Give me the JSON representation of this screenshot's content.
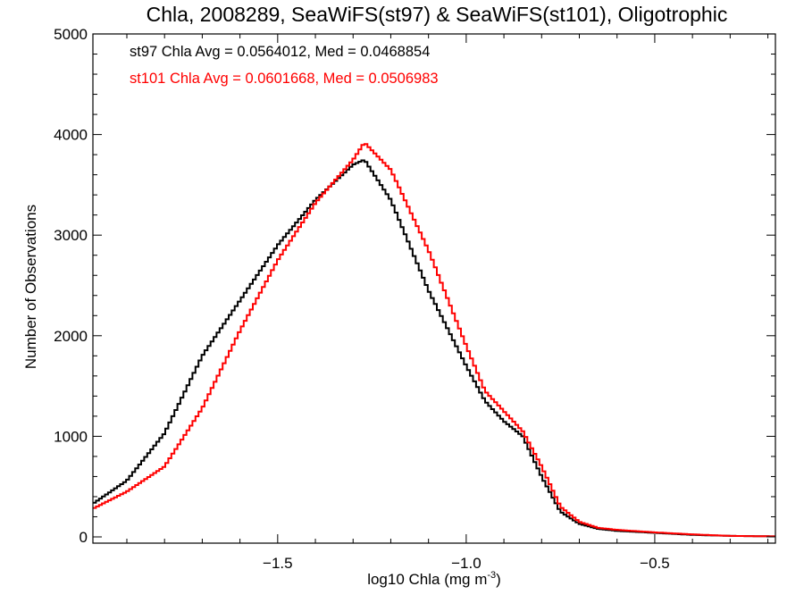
{
  "chart_data": {
    "type": "line",
    "title": "Chla, 2008289, SeaWiFS(st97) & SeaWiFS(st101), Oligotrophic",
    "xlabel": "log10 Chla (mg m",
    "xlabel_sup": "-3",
    "xlabel_close": ")",
    "ylabel": "Number of Observations",
    "xlim": [
      -1.99,
      -0.18
    ],
    "ylim": [
      0,
      5000
    ],
    "x_ticks": [
      -1.5,
      -1.0,
      -0.5
    ],
    "x_tick_labels": [
      "−1.5",
      "−1.0",
      "−0.5"
    ],
    "y_ticks": [
      0,
      1000,
      2000,
      3000,
      4000,
      5000
    ],
    "y_tick_labels": [
      "0",
      "1000",
      "2000",
      "3000",
      "4000",
      "5000"
    ],
    "grid": false,
    "annotations": [
      {
        "text": "st97 Chla Avg = 0.0564012, Med = 0.0468854",
        "color": "#000000"
      },
      {
        "text": "st101 Chla Avg = 0.0601668, Med = 0.0506983",
        "color": "#ff0000"
      }
    ],
    "series": [
      {
        "color": "#000000",
        "x": [
          -1.99,
          -1.9,
          -1.8,
          -1.7,
          -1.6,
          -1.5,
          -1.4,
          -1.3,
          -1.27,
          -1.2,
          -1.1,
          -1.0,
          -0.95,
          -0.9,
          -0.85,
          -0.8,
          -0.75,
          -0.7,
          -0.65,
          -0.6,
          -0.5,
          -0.4,
          -0.3,
          -0.18
        ],
        "y": [
          330,
          560,
          1030,
          1800,
          2350,
          2900,
          3350,
          3700,
          3750,
          3350,
          2450,
          1700,
          1350,
          1150,
          1000,
          600,
          250,
          130,
          80,
          60,
          40,
          20,
          10,
          5
        ]
      },
      {
        "color": "#ff0000",
        "x": [
          -1.99,
          -1.9,
          -1.8,
          -1.7,
          -1.6,
          -1.5,
          -1.4,
          -1.3,
          -1.27,
          -1.2,
          -1.1,
          -1.0,
          -0.95,
          -0.9,
          -0.85,
          -0.8,
          -0.75,
          -0.7,
          -0.65,
          -0.6,
          -0.5,
          -0.4,
          -0.3,
          -0.18
        ],
        "y": [
          280,
          450,
          700,
          1280,
          2050,
          2750,
          3320,
          3750,
          3920,
          3650,
          2850,
          1900,
          1450,
          1250,
          1050,
          700,
          300,
          150,
          90,
          70,
          45,
          25,
          10,
          5
        ]
      }
    ]
  }
}
